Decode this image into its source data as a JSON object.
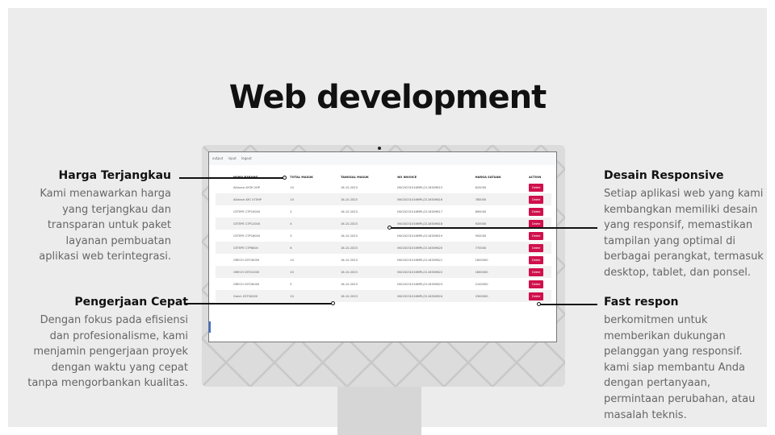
{
  "title": "Web development",
  "screen": {
    "nav": [
      "output",
      "input",
      "logout"
    ],
    "columns": [
      "NAMA BARANG",
      "TOTAL MASUK",
      "TANGGAL MASUK",
      "NO INVOICE",
      "HARGA SATUAN",
      "ACTION"
    ],
    "delete_label": "Delete",
    "rows": [
      [
        "Alliance AY3H 2HP",
        "10",
        "16-10-2023",
        "INV20231016MPL/2116309815",
        "620000"
      ],
      [
        "Alliance AYC 075HP",
        "10",
        "16-10-2023",
        "INV20231016MPL/2116309816",
        "780000"
      ],
      [
        "CETEPE CTP10000",
        "2",
        "16-10-2023",
        "INV20231016MPL/2116309817",
        "890000"
      ],
      [
        "CETEPE CTP12000",
        "4",
        "16-10-2023",
        "INV20231016MPL/2116309818",
        "920000"
      ],
      [
        "CETEPE CTP16000",
        "3",
        "16-10-2023",
        "INV20231016MPL/2116309819",
        "950000"
      ],
      [
        "CETEPE CTP8000",
        "6",
        "16-10-2023",
        "INV20231016MPL/2116309820",
        "770000"
      ],
      [
        "GRECH CEF16000",
        "10",
        "16-10-2023",
        "INV20231016MPL/2116309821",
        "1600000"
      ],
      [
        "GRECH CEF22000",
        "10",
        "16-10-2023",
        "INV20231016MPL/2116309822",
        "1800000"
      ],
      [
        "GRECH CEF26000",
        "5",
        "16-10-2023",
        "INV20231016MPL/2116309823",
        "2100000"
      ],
      [
        "Grech CEF30000",
        "10",
        "16-10-2023",
        "INV20231016MPL/2116309824",
        "2300000"
      ]
    ]
  },
  "features": [
    {
      "title": "Harga Terjangkau",
      "text": "Kami menawarkan harga yang terjangkau dan transparan untuk paket layanan pembuatan aplikasi web terintegrasi."
    },
    {
      "title": "Pengerjaan Cepat",
      "text": "Dengan fokus pada efisiensi dan profesionalisme, kami menjamin pengerjaan proyek dengan waktu yang cepat tanpa mengorbankan kualitas."
    },
    {
      "title": "Desain Responsive",
      "text": "Setiap aplikasi web yang kami kembangkan memiliki desain yang responsif, memastikan tampilan yang optimal di berbagai perangkat, termasuk desktop, tablet, dan ponsel."
    },
    {
      "title": "Fast respon",
      "text": "berkomitmen untuk memberikan dukungan pelanggan yang responsif. kami siap membantu Anda dengan pertanyaan, permintaan perubahan, atau masalah teknis."
    }
  ],
  "colors": {
    "accent": "#d0104c",
    "background": "#ececec"
  }
}
